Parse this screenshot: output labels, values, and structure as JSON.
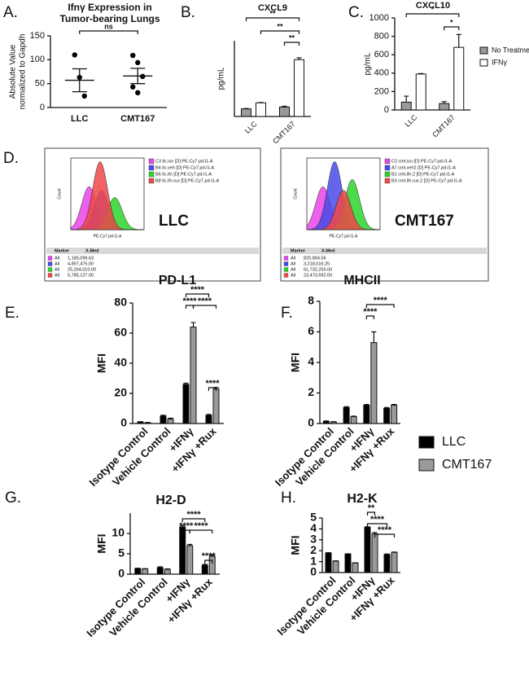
{
  "chart_data": [
    {
      "type": "dot",
      "panel_label": "A.",
      "title": [
        "Ifnγ Expression in",
        "Tumor-bearing Lungs"
      ],
      "ylabel": [
        "Absolute Value",
        "normalized to Gapdh"
      ],
      "categories": [
        "LLC",
        "CMT167"
      ],
      "points": [
        [
          110,
          63,
          24
        ],
        [
          109,
          94,
          65,
          43,
          31
        ]
      ],
      "means": [
        57,
        66
      ],
      "errors": [
        24,
        16
      ],
      "ylim": [
        0,
        150
      ],
      "yticks": [
        0,
        50,
        100,
        150
      ],
      "annotations": [
        "ns"
      ]
    },
    {
      "type": "bar",
      "panel_label": "B.",
      "title": "CXCL9",
      "ylabel": "pg/mL",
      "categories": [
        "LLC",
        "CMT167"
      ],
      "series": [
        {
          "color": "#9a9a9a",
          "values": [
            20,
            25
          ],
          "errors": [
            1,
            2
          ]
        },
        {
          "color": "#ffffff",
          "values": [
            36,
            150
          ],
          "errors": [
            1,
            5
          ]
        }
      ],
      "ylim": [
        0,
        200
      ],
      "annotations": [
        "**",
        "**",
        "**"
      ]
    },
    {
      "type": "bar",
      "panel_label": "C.",
      "title": "CXCL10",
      "ylabel": "pg/mL",
      "categories": [
        "LLC",
        "CMT167"
      ],
      "series": [
        {
          "name": "No Treatment",
          "color": "#9a9a9a",
          "values": [
            85,
            70
          ],
          "errors": [
            65,
            20
          ]
        },
        {
          "name": "IFNγ",
          "color": "#ffffff",
          "values": [
            390,
            680
          ],
          "errors": [
            5,
            140
          ]
        }
      ],
      "ylim": [
        0,
        1000
      ],
      "yticks": [
        0,
        200,
        400,
        600,
        800,
        1000
      ],
      "annotations": [
        "*",
        "*"
      ]
    },
    {
      "type": "flow",
      "panel_label": "D.",
      "label": "LLC",
      "ylabel": "Count",
      "xlabel": "PE-Cy7.pd-l1-A",
      "columns": [
        "Marker",
        "X-Med"
      ],
      "entries": [
        {
          "name": "C3 llc.iso [D] PE-Cy7.pd-l1-A",
          "color": "#e845e8",
          "marker": "All",
          "x_med": "1,185,099.63"
        },
        {
          "name": "B4 llc.veh [D] PE-Cy7.pd-l1-A",
          "color": "#4a4ae8",
          "marker": "All",
          "x_med": "4,897,475.00"
        },
        {
          "name": "B6 llc.ifn [D] PE-Cy7.pd-l1-A",
          "color": "#2ed42e",
          "marker": "All",
          "x_med": "25,264,010.00"
        },
        {
          "name": "B8 llc.ifn.rux [D] PE-Cy7.pd-l1-A",
          "color": "#f04848",
          "marker": "All",
          "x_med": "5,785,127.00"
        }
      ]
    },
    {
      "type": "flow",
      "label": "CMT167",
      "ylabel": "Count",
      "xlabel": "PE-Cy7.pd-l1-A",
      "columns": [
        "Marker",
        "X-Med"
      ],
      "entries": [
        {
          "name": "C2 cmt.iso [D] PE-Cy7.pd-l1-A",
          "color": "#e845e8",
          "marker": "All",
          "x_med": "820,894.56"
        },
        {
          "name": "A7 cmt.veh2 [D] PE-Cy7.pd-l1-A",
          "color": "#4a4ae8",
          "marker": "All",
          "x_med": "3,218,016.25"
        },
        {
          "name": "B1 cmt.ifn.2 [D] PE-Cy7.pd-l1-A",
          "color": "#2ed42e",
          "marker": "All",
          "x_med": "61,732,256.00"
        },
        {
          "name": "B3 cmt.ifn.rux.2 [D] PE-Cy7.pd-l1-A",
          "color": "#f04848",
          "marker": "All",
          "x_med": "23,473,592.00"
        }
      ]
    },
    {
      "type": "bar",
      "panel_label": "E.",
      "title": "PD-L1",
      "ylabel": "MFI",
      "categories": [
        "Isotype Control",
        "Vehicle Control",
        "+IFNγ",
        "+IFNγ +Rux"
      ],
      "series": [
        {
          "name": "LLC",
          "color": "#000000",
          "values": [
            1,
            5,
            26,
            5.5
          ],
          "errors": [
            0.2,
            0.5,
            0.8,
            0.5
          ]
        },
        {
          "name": "CMT167",
          "color": "#9a9a9a",
          "values": [
            0.5,
            3,
            64,
            23
          ],
          "errors": [
            0.2,
            0.5,
            3,
            1
          ]
        }
      ],
      "ylim": [
        0,
        80
      ],
      "yticks": [
        0,
        20,
        40,
        60,
        80
      ],
      "annotations": [
        "****",
        "****",
        "****",
        "****"
      ]
    },
    {
      "type": "bar",
      "panel_label": "F.",
      "title": "MHCII",
      "ylabel": "MFI",
      "categories": [
        "Isotype Control",
        "Vehicle Control",
        "+IFNγ",
        "+IFNγ +Rux"
      ],
      "series": [
        {
          "color": "#000000",
          "values": [
            0.15,
            1.05,
            1.2,
            1.0
          ],
          "errors": [
            0.02,
            0.05,
            0.05,
            0.05
          ]
        },
        {
          "color": "#9a9a9a",
          "values": [
            0.1,
            0.45,
            5.3,
            1.2
          ],
          "errors": [
            0.02,
            0.03,
            0.7,
            0.05
          ]
        }
      ],
      "ylim": [
        0,
        8
      ],
      "yticks": [
        0,
        2,
        4,
        6,
        8
      ],
      "annotations": [
        "****",
        "****"
      ]
    },
    {
      "type": "bar",
      "panel_label": "G.",
      "title": "H2-D",
      "ylabel": "MFI",
      "categories": [
        "Isotype Control",
        "Vehicle Control",
        "+IFNγ",
        "+IFNγ +Rux"
      ],
      "series": [
        {
          "color": "#000000",
          "values": [
            1.4,
            1.6,
            11.6,
            2.2
          ],
          "errors": [
            0.05,
            0.2,
            0.3,
            0.2
          ]
        },
        {
          "color": "#9a9a9a",
          "values": [
            1.3,
            1.2,
            7.0,
            4.4
          ],
          "errors": [
            0.05,
            0.1,
            0.3,
            0.3
          ]
        }
      ],
      "ylim": [
        0,
        15
      ],
      "yticks": [
        0,
        5,
        10
      ],
      "annotations": [
        "****",
        "****",
        "****",
        "****"
      ]
    },
    {
      "type": "bar",
      "panel_label": "H.",
      "title": "H2-K",
      "ylabel": "MFI",
      "categories": [
        "Isotype Control",
        "Vehicle Control",
        "+IFNγ",
        "+IFNγ +Rux"
      ],
      "series": [
        {
          "color": "#000000",
          "values": [
            1.8,
            1.7,
            4.15,
            1.65
          ],
          "errors": [
            0.02,
            0.02,
            0.05,
            0.05
          ]
        },
        {
          "color": "#9a9a9a",
          "values": [
            1.05,
            0.88,
            3.55,
            1.85
          ],
          "errors": [
            0.02,
            0.02,
            0.12,
            0.03
          ]
        }
      ],
      "ylim": [
        0,
        5
      ],
      "yticks": [
        0,
        1,
        2,
        3,
        4,
        5
      ],
      "annotations": [
        "**",
        "****",
        "****"
      ]
    }
  ]
}
